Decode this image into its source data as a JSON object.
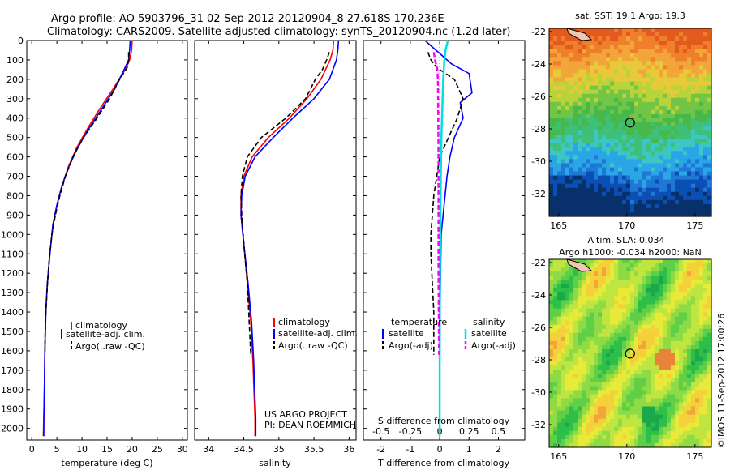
{
  "header": {
    "line1": "Argo profile: AO 5903796_31 02-Sep-2012 20120904_8 27.618S 170.236E",
    "line2": "Climatology: CARS2009. Satellite-adjusted climatology: synTS_20120904.nc (1.2d later)"
  },
  "colors": {
    "climatology": "#ff0000",
    "satellite": "#0000ff",
    "argo": "#000000",
    "s_satellite": "#00e0e0",
    "s_argo": "#ff00ff"
  },
  "chart_data": [
    {
      "type": "line",
      "id": "temperature",
      "xlabel": "temperature (deg C)",
      "ylabel": "",
      "xlim": [
        -1,
        31
      ],
      "ylim": [
        2060,
        0
      ],
      "xticks": [
        0,
        5,
        10,
        15,
        20,
        25,
        30
      ],
      "yticks": [
        0,
        100,
        200,
        300,
        400,
        500,
        600,
        700,
        800,
        900,
        1000,
        1100,
        1200,
        1300,
        1400,
        1500,
        1600,
        1700,
        1800,
        1900,
        2000
      ],
      "legend": [
        "climatology",
        "satellite-adj. clim.",
        "Argo(..raw -QC)"
      ],
      "legend_location": "lower-left",
      "series": [
        {
          "name": "climatology",
          "color": "#ff0000",
          "style": "solid",
          "x": [
            20.0,
            19.9,
            19.5,
            18.6,
            16.2,
            13.6,
            11.2,
            9.0,
            7.3,
            6.0,
            5.0,
            4.2,
            3.6,
            3.1,
            2.8,
            2.6,
            2.5,
            2.4,
            2.3
          ],
          "y": [
            0,
            50,
            100,
            150,
            250,
            350,
            450,
            550,
            650,
            750,
            850,
            950,
            1100,
            1250,
            1400,
            1600,
            1800,
            1950,
            2040
          ]
        },
        {
          "name": "satellite-adj. clim.",
          "color": "#0000ff",
          "style": "solid",
          "x": [
            19.6,
            19.5,
            19.3,
            18.4,
            16.5,
            14.0,
            11.5,
            9.2,
            7.4,
            6.0,
            5.0,
            4.2,
            3.6,
            3.1,
            2.8,
            2.6,
            2.5,
            2.4,
            2.4
          ],
          "y": [
            0,
            50,
            100,
            150,
            250,
            350,
            450,
            550,
            650,
            750,
            850,
            950,
            1100,
            1250,
            1400,
            1600,
            1800,
            1950,
            2040
          ]
        },
        {
          "name": "Argo(..raw -QC)",
          "color": "#000000",
          "style": "dashed",
          "x": [
            19.3,
            19.3,
            19.0,
            17.5,
            15.5,
            13.0,
            10.3,
            8.2,
            6.7,
            5.6,
            4.7,
            4.0,
            3.4,
            3.0,
            2.7,
            2.6
          ],
          "y": [
            60,
            100,
            140,
            200,
            300,
            400,
            500,
            600,
            700,
            800,
            900,
            1000,
            1150,
            1300,
            1450,
            1620
          ]
        }
      ]
    },
    {
      "type": "line",
      "id": "salinity",
      "xlabel": "salinity",
      "ylabel": "",
      "xlim": [
        33.8,
        36.1
      ],
      "ylim": [
        2060,
        0
      ],
      "xticks": [
        34,
        34.5,
        35,
        35.5,
        36
      ],
      "xticklabels": [
        "34",
        "34.5",
        "35",
        "35.5",
        "36"
      ],
      "legend": [
        "climatology",
        "satellite-adj. clim.",
        "Argo(..raw -QC)"
      ],
      "legend_location": "lower-right",
      "annotation": [
        "US ARGO PROJECT",
        "PI: DEAN ROEMMICH"
      ],
      "series": [
        {
          "name": "climatology",
          "color": "#ff0000",
          "style": "solid",
          "x": [
            35.78,
            35.77,
            35.73,
            35.6,
            35.4,
            35.15,
            34.85,
            34.62,
            34.5,
            34.46,
            34.46,
            34.5,
            34.55,
            34.6,
            34.63,
            34.65,
            34.66,
            34.66
          ],
          "y": [
            0,
            50,
            100,
            200,
            300,
            400,
            500,
            600,
            700,
            800,
            900,
            1050,
            1250,
            1450,
            1650,
            1850,
            1950,
            2040
          ]
        },
        {
          "name": "satellite-adj. clim.",
          "color": "#0000ff",
          "style": "solid",
          "x": [
            35.85,
            35.84,
            35.82,
            35.72,
            35.5,
            35.2,
            34.92,
            34.66,
            34.52,
            34.47,
            34.46,
            34.5,
            34.56,
            34.61,
            34.64,
            34.66,
            34.67,
            34.67
          ],
          "y": [
            0,
            50,
            100,
            200,
            300,
            400,
            500,
            600,
            700,
            800,
            900,
            1050,
            1250,
            1450,
            1650,
            1850,
            1950,
            2040
          ]
        },
        {
          "name": "Argo(..raw -QC)",
          "color": "#000000",
          "style": "dashed",
          "x": [
            35.72,
            35.68,
            35.62,
            35.52,
            35.38,
            35.1,
            34.75,
            34.55,
            34.48,
            34.46,
            34.47,
            34.5,
            34.55,
            34.6
          ],
          "y": [
            60,
            100,
            150,
            200,
            300,
            400,
            500,
            600,
            700,
            800,
            900,
            1050,
            1250,
            1620
          ]
        }
      ]
    },
    {
      "type": "line",
      "id": "differences",
      "xlabel": "T difference from climatology",
      "xlabel_top": "S difference from climatology",
      "xlim": [
        -2.6,
        2.9
      ],
      "ylim": [
        2060,
        0
      ],
      "xticks": [
        -2,
        -1,
        0,
        1,
        2
      ],
      "s_ticks": [
        -0.5,
        -0.25,
        0,
        0.25,
        0.5
      ],
      "s_ticklabels": [
        "-0.5",
        "-0.25",
        "0",
        "0.25",
        "0.5"
      ],
      "legend_groups": [
        {
          "title": "temperature",
          "entries": [
            "satellite",
            "Argo(-adj)"
          ]
        },
        {
          "title": "salinity",
          "entries": [
            "satellite",
            "Argo(-adj)"
          ]
        }
      ],
      "legend_location": "lower-center",
      "series": [
        {
          "name": "temperature satellite",
          "color": "#0000ff",
          "style": "solid",
          "x": [
            -0.5,
            -0.2,
            0.1,
            0.4,
            1.0,
            1.1,
            0.7,
            0.8,
            0.5,
            0.35,
            0.25,
            0.15,
            0.05,
            0.02,
            0.0,
            0.0
          ],
          "y": [
            0,
            40,
            80,
            120,
            170,
            270,
            320,
            400,
            500,
            600,
            700,
            850,
            1000,
            1300,
            1700,
            2040
          ]
        },
        {
          "name": "temperature Argo(-adj)",
          "color": "#000000",
          "style": "dashed",
          "x": [
            -0.4,
            -0.3,
            -0.1,
            0.5,
            0.8,
            0.6,
            0.3,
            0.0,
            -0.2,
            -0.3,
            -0.3,
            -0.2,
            -0.2
          ],
          "y": [
            60,
            100,
            140,
            200,
            300,
            400,
            500,
            600,
            800,
            1000,
            1100,
            1400,
            1620
          ]
        },
        {
          "name": "salinity satellite",
          "color": "#00e0e0",
          "style": "solid",
          "linewidth": 2.5,
          "x": [
            0.07,
            0.05,
            0.04,
            0.03,
            0.025,
            0.015,
            0.01,
            0.005,
            0.0,
            0.0
          ],
          "y": [
            0,
            50,
            100,
            200,
            300,
            500,
            700,
            1000,
            1500,
            2040
          ]
        },
        {
          "name": "salinity Argo(-adj)",
          "color": "#ff00ff",
          "style": "dashed",
          "linewidth": 2.5,
          "x": [
            -0.05,
            -0.04,
            -0.02,
            -0.015,
            -0.012,
            -0.01,
            -0.01,
            -0.01,
            -0.005
          ],
          "y": [
            60,
            100,
            150,
            200,
            400,
            600,
            800,
            1200,
            1620
          ]
        }
      ]
    },
    {
      "type": "heatmap",
      "id": "sst-map",
      "title": "sat. SST: 19.1  Argo: 19.3",
      "xlim": [
        164.3,
        176.2
      ],
      "ylim": [
        -33.4,
        -21.8
      ],
      "xticks": [
        165,
        170,
        175
      ],
      "yticks": [
        -22,
        -24,
        -26,
        -28,
        -30,
        -32
      ],
      "marker": {
        "lon": 170.236,
        "lat": -27.618,
        "shape": "circle"
      }
    },
    {
      "type": "heatmap",
      "id": "sla-map",
      "title": "Altim. SLA: 0.034",
      "subtitle": "Argo h1000: -0.034 h2000: NaN",
      "xlim": [
        164.3,
        176.2
      ],
      "ylim": [
        -33.4,
        -21.8
      ],
      "xticks": [
        165,
        170,
        175
      ],
      "yticks": [
        -22,
        -24,
        -26,
        -28,
        -30,
        -32
      ],
      "marker": {
        "lon": 170.236,
        "lat": -27.618,
        "shape": "circle"
      }
    }
  ],
  "footer": {
    "credit": "©IMOS 11-Sep-2012 17:00:26"
  }
}
